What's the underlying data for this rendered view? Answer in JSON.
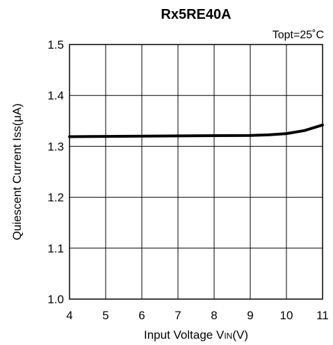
{
  "chart_data": {
    "type": "line",
    "title": "Rx5RE40A",
    "condition": "Topt=25˚C",
    "xlabel": {
      "prefix": "Input Voltage V",
      "subscript": "IN",
      "suffix": "(V)"
    },
    "ylabel": "Quiescent Current Iss(μA)",
    "xlim": [
      4,
      11
    ],
    "ylim": [
      1.0,
      1.5
    ],
    "x_ticks": [
      "4",
      "5",
      "6",
      "7",
      "8",
      "9",
      "10",
      "11"
    ],
    "y_ticks": [
      "1.0",
      "1.1",
      "1.2",
      "1.3",
      "1.4",
      "1.5"
    ],
    "grid": true,
    "series": [
      {
        "x": [
          4.0,
          5.0,
          6.0,
          7.0,
          8.0,
          9.0,
          9.5,
          10.0,
          10.5,
          11.0
        ],
        "y": [
          1.319,
          1.3195,
          1.32,
          1.3205,
          1.321,
          1.3215,
          1.3225,
          1.325,
          1.331,
          1.342
        ]
      }
    ]
  }
}
